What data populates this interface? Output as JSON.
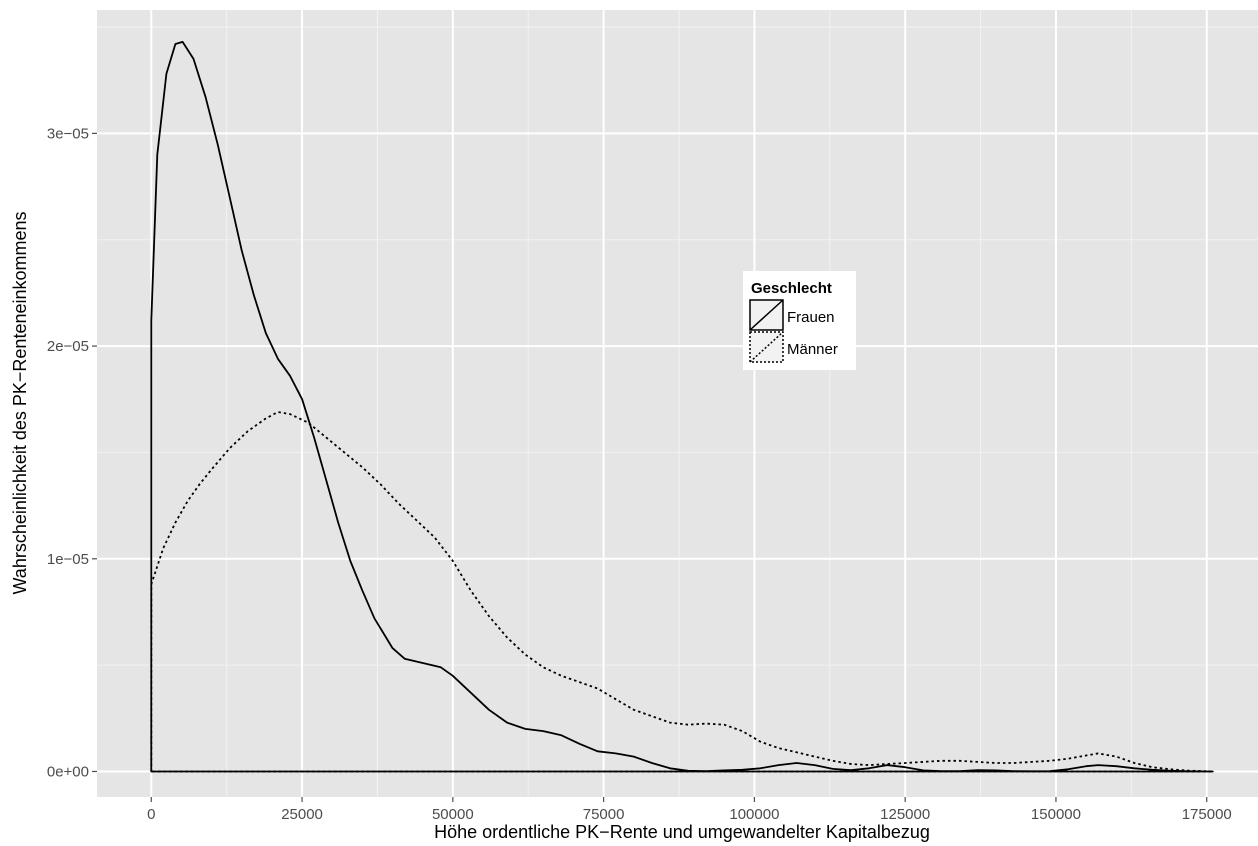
{
  "chart_data": {
    "type": "line",
    "xlabel": "Höhe ordentliche PK−Rente und umgewandelter Kapitalbezug",
    "ylabel": "Wahrscheinlichkeit des PK−Renteneinkommens",
    "xlim": [
      -9000,
      183500
    ],
    "ylim": [
      -1.2e-06,
      3.58e-05
    ],
    "x_ticks": [
      0,
      25000,
      50000,
      75000,
      100000,
      125000,
      150000,
      175000
    ],
    "x_tick_labels": [
      "0",
      "25000",
      "50000",
      "75000",
      "100000",
      "125000",
      "150000",
      "175000"
    ],
    "y_ticks": [
      0,
      1e-05,
      2e-05,
      3e-05
    ],
    "y_tick_labels": [
      "0e+00",
      "1e−05",
      "2e−05",
      "3e−05"
    ],
    "grid": true,
    "legend": {
      "title": "Geschlecht",
      "placement": "center-right inside",
      "entries": [
        "Frauen",
        "Männer"
      ]
    },
    "series": [
      {
        "name": "Frauen",
        "linetype": "solid",
        "x": [
          0,
          1000,
          2500,
          4000,
          5200,
          7000,
          9000,
          11000,
          13000,
          15000,
          17000,
          19000,
          21000,
          23000,
          25000,
          27000,
          29000,
          31000,
          33000,
          35000,
          37000,
          40000,
          42000,
          45000,
          48000,
          50000,
          53000,
          56000,
          59000,
          62000,
          65000,
          68000,
          71000,
          74000,
          77000,
          80000,
          83000,
          86000,
          89000,
          92000,
          95000,
          98000,
          101000,
          104000,
          107000,
          110000,
          113000,
          116000,
          119000,
          122000,
          125000,
          128000,
          131000,
          134000,
          137000,
          140000,
          143000,
          146000,
          149000,
          152000,
          155000,
          157000,
          160000,
          163000,
          166000,
          169000,
          172000,
          176000
        ],
        "y": [
          2.12e-05,
          2.9e-05,
          3.28e-05,
          3.42e-05,
          3.43e-05,
          3.35e-05,
          3.17e-05,
          2.95e-05,
          2.7e-05,
          2.45e-05,
          2.24e-05,
          2.06e-05,
          1.94e-05,
          1.86e-05,
          1.75e-05,
          1.57e-05,
          1.37e-05,
          1.17e-05,
          9.9e-06,
          8.5e-06,
          7.2e-06,
          5.8e-06,
          5.3e-06,
          5.1e-06,
          4.9e-06,
          4.5e-06,
          3.7e-06,
          2.9e-06,
          2.3e-06,
          2e-06,
          1.9e-06,
          1.7e-06,
          1.3e-06,
          9.5e-07,
          8.5e-07,
          7e-07,
          4e-07,
          1.5e-07,
          3e-08,
          2e-08,
          5e-08,
          8e-08,
          1.5e-07,
          3e-07,
          4e-07,
          3e-07,
          1.2e-07,
          6e-08,
          1.5e-07,
          3e-07,
          2e-07,
          5e-08,
          2e-08,
          2e-08,
          6e-08,
          5e-08,
          2e-08,
          1e-08,
          2e-08,
          1e-07,
          2.5e-07,
          3e-07,
          2.5e-07,
          1.5e-07,
          8e-08,
          3e-08,
          1e-08,
          0
        ]
      },
      {
        "name": "Männer",
        "linetype": "dotted",
        "x": [
          0,
          2000,
          4000,
          6000,
          8000,
          10000,
          13000,
          16000,
          19000,
          21000,
          23000,
          26000,
          29000,
          32000,
          35000,
          38000,
          41000,
          44000,
          47000,
          50000,
          53000,
          56000,
          59000,
          62000,
          65000,
          68000,
          71000,
          74000,
          77000,
          80000,
          83000,
          86000,
          89000,
          92000,
          95000,
          98000,
          101000,
          104000,
          107000,
          110000,
          113000,
          116000,
          119000,
          122000,
          125000,
          128000,
          131000,
          134000,
          137000,
          140000,
          143000,
          146000,
          149000,
          152000,
          155000,
          157000,
          160000,
          163000,
          166000,
          169000,
          172000,
          176000
        ],
        "y": [
          8.8e-06,
          1.05e-05,
          1.17e-05,
          1.27e-05,
          1.35e-05,
          1.42e-05,
          1.52e-05,
          1.6e-05,
          1.66e-05,
          1.69e-05,
          1.68e-05,
          1.64e-05,
          1.57e-05,
          1.5e-05,
          1.43e-05,
          1.35e-05,
          1.26e-05,
          1.18e-05,
          1.1e-05,
          9.9e-06,
          8.5e-06,
          7.3e-06,
          6.3e-06,
          5.5e-06,
          4.9e-06,
          4.5e-06,
          4.2e-06,
          3.9e-06,
          3.4e-06,
          2.9e-06,
          2.6e-06,
          2.3e-06,
          2.2e-06,
          2.25e-06,
          2.2e-06,
          1.9e-06,
          1.4e-06,
          1.1e-06,
          9e-07,
          7e-07,
          5e-07,
          3.5e-07,
          3e-07,
          3.5e-07,
          4e-07,
          4.5e-07,
          5e-07,
          5e-07,
          4.5e-07,
          4e-07,
          4e-07,
          4.5e-07,
          5e-07,
          6e-07,
          7.5e-07,
          8.5e-07,
          7e-07,
          4e-07,
          2e-07,
          1e-07,
          4e-08,
          0
        ]
      }
    ]
  },
  "colors": {
    "panel_background": "#e5e5e5",
    "grid_major": "#ffffff",
    "grid_minor": "#f2f2f2",
    "line": "#000000",
    "tick_text": "#4d4d4d"
  }
}
